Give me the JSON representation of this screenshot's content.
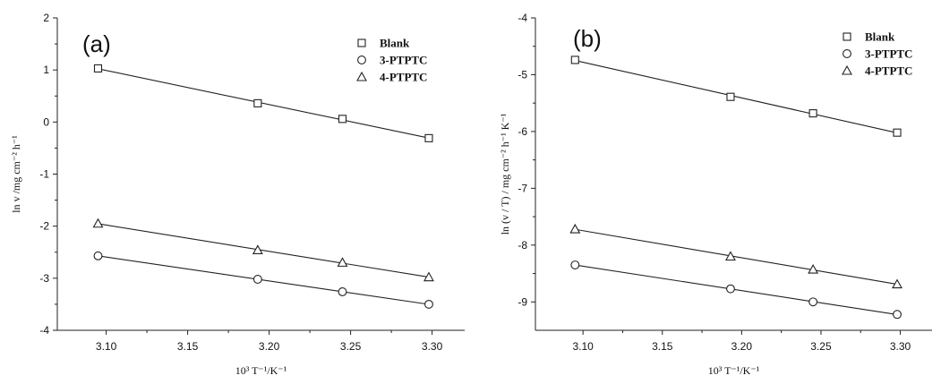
{
  "chart_data": [
    {
      "type": "scatter",
      "panel_label": "(a)",
      "xlabel": "10³ T⁻¹/K⁻¹",
      "ylabel": "ln v /mg cm⁻² h⁻¹",
      "xlim": [
        3.07,
        3.32
      ],
      "ylim": [
        -4,
        2
      ],
      "xticks": [
        "3.10",
        "3.15",
        "3.20",
        "3.25",
        "3.30"
      ],
      "yticks": [
        "2",
        "1",
        "0",
        "-1",
        "-2",
        "-3",
        "-4"
      ],
      "x": [
        3.095,
        3.193,
        3.245,
        3.298
      ],
      "grid": false,
      "legend_position": "top-right",
      "series": [
        {
          "name": "Blank",
          "marker": "square",
          "values": [
            1.03,
            0.36,
            0.06,
            -0.31
          ]
        },
        {
          "name": "3-PTPTC",
          "marker": "circle",
          "values": [
            -2.57,
            -3.02,
            -3.26,
            -3.5
          ]
        },
        {
          "name": "4-PTPTC",
          "marker": "triangle",
          "values": [
            -1.95,
            -2.46,
            -2.7,
            -2.98
          ]
        }
      ]
    },
    {
      "type": "scatter",
      "panel_label": "(b)",
      "xlabel": "10³ T⁻¹/K⁻¹",
      "ylabel": "ln (v / T) / mg cm⁻² h⁻¹ K⁻¹",
      "xlim": [
        3.07,
        3.32
      ],
      "ylim": [
        -9.5,
        -4
      ],
      "xticks": [
        "3.10",
        "3.15",
        "3.20",
        "3.25",
        "3.30"
      ],
      "yticks": [
        "-4",
        "-5",
        "-6",
        "-7",
        "-8",
        "-9"
      ],
      "x": [
        3.095,
        3.193,
        3.245,
        3.298
      ],
      "grid": false,
      "legend_position": "top-right",
      "series": [
        {
          "name": "Blank",
          "marker": "square",
          "values": [
            -4.74,
            -5.39,
            -5.68,
            -6.02
          ]
        },
        {
          "name": "3-PTPTC",
          "marker": "circle",
          "values": [
            -8.35,
            -8.77,
            -9.0,
            -9.22
          ]
        },
        {
          "name": "4-PTPTC",
          "marker": "triangle",
          "values": [
            -7.72,
            -8.2,
            -8.43,
            -8.69
          ]
        }
      ]
    }
  ]
}
